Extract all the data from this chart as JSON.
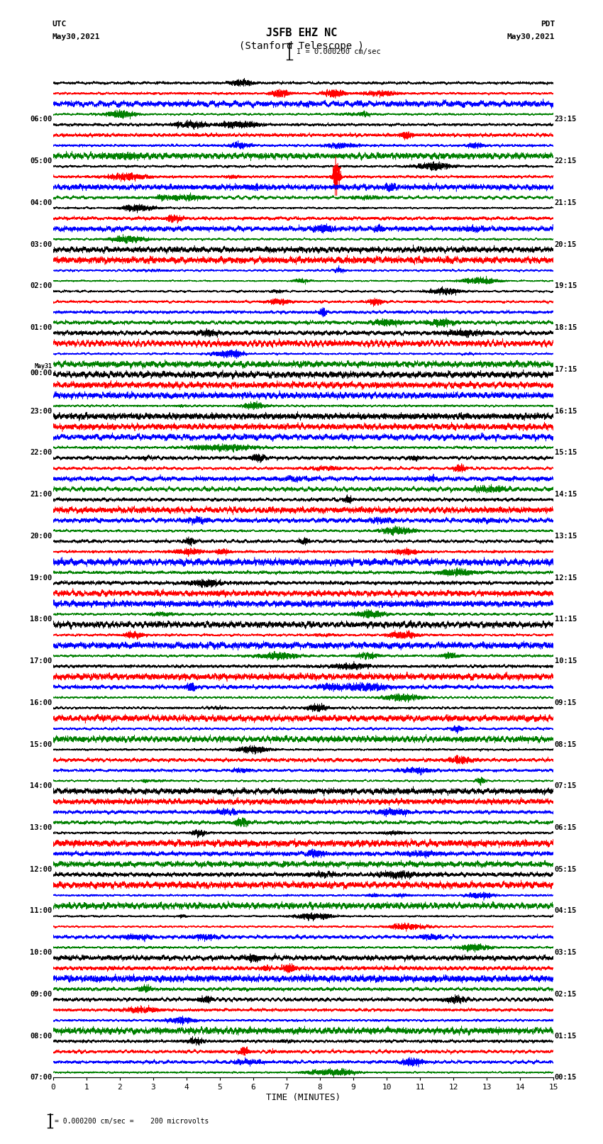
{
  "title_line1": "JSFB EHZ NC",
  "title_line2": "(Stanford Telescope )",
  "scale_text": "I = 0.000200 cm/sec",
  "bottom_text": "0.000200 cm/sec =    200 microvolts",
  "bottom_label": "TIME (MINUTES)",
  "utc_label": "UTC",
  "pdt_label": "PDT",
  "date_left": "May30,2021",
  "date_right": "May30,2021",
  "left_times_utc": [
    "07:00",
    "08:00",
    "09:00",
    "10:00",
    "11:00",
    "12:00",
    "13:00",
    "14:00",
    "15:00",
    "16:00",
    "17:00",
    "18:00",
    "19:00",
    "20:00",
    "21:00",
    "22:00",
    "23:00",
    "May31\n00:00",
    "01:00",
    "02:00",
    "03:00",
    "04:00",
    "05:00",
    "06:00"
  ],
  "right_times_pdt": [
    "00:15",
    "01:15",
    "02:15",
    "03:15",
    "04:15",
    "05:15",
    "06:15",
    "07:15",
    "08:15",
    "09:15",
    "10:15",
    "11:15",
    "12:15",
    "13:15",
    "14:15",
    "15:15",
    "16:15",
    "17:15",
    "18:15",
    "19:15",
    "20:15",
    "21:15",
    "22:15",
    "23:15"
  ],
  "n_rows": 24,
  "traces_per_row": 4,
  "colors": [
    "black",
    "red",
    "blue",
    "green"
  ],
  "xmin": 0,
  "xmax": 15,
  "xticks": [
    0,
    1,
    2,
    3,
    4,
    5,
    6,
    7,
    8,
    9,
    10,
    11,
    12,
    13,
    14,
    15
  ],
  "bg_color": "white",
  "earthquake_row": 2,
  "earthquake_time": 8.5,
  "earthquake_trace": 1,
  "blackdot_row": 20,
  "blackdot_time": 8.2,
  "fig_width": 8.5,
  "fig_height": 16.13
}
